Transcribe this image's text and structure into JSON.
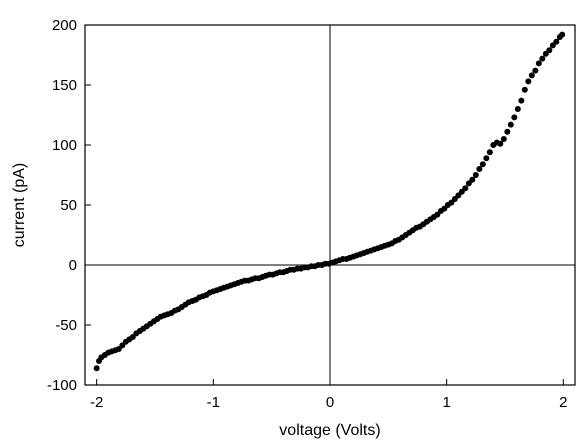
{
  "chart_data": {
    "type": "scatter",
    "title": "",
    "xlabel": "voltage (Volts)",
    "ylabel": "current (pA)",
    "xlim": [
      -2.1,
      2.1
    ],
    "ylim": [
      -100,
      200
    ],
    "xticks": [
      -2,
      -1,
      0,
      1,
      2
    ],
    "yticks": [
      -100,
      -50,
      0,
      50,
      100,
      150,
      200
    ],
    "xtick_labels": [
      "-2",
      "-1",
      "0",
      "1",
      "2"
    ],
    "ytick_labels": [
      "-100",
      "-50",
      "0",
      "50",
      "100",
      "150",
      "200"
    ],
    "reference_lines": {
      "x": 0,
      "y": 0
    },
    "grid": false,
    "marker_color": "#000000",
    "series": [
      {
        "x": [
          -2.0,
          -1.98,
          -1.96,
          -1.93,
          -1.9,
          -1.87,
          -1.84,
          -1.81,
          -1.78,
          -1.75,
          -1.72,
          -1.69,
          -1.66,
          -1.63,
          -1.6,
          -1.57,
          -1.54,
          -1.51,
          -1.48,
          -1.45,
          -1.42,
          -1.39,
          -1.36,
          -1.33,
          -1.3,
          -1.27,
          -1.24,
          -1.21,
          -1.18,
          -1.15,
          -1.12,
          -1.09,
          -1.06,
          -1.03,
          -1.0,
          -0.97,
          -0.94,
          -0.91,
          -0.88,
          -0.85,
          -0.82,
          -0.79,
          -0.76,
          -0.73,
          -0.7,
          -0.67,
          -0.64,
          -0.61,
          -0.58,
          -0.55,
          -0.52,
          -0.49,
          -0.46,
          -0.43,
          -0.4,
          -0.37,
          -0.34,
          -0.31,
          -0.28,
          -0.25,
          -0.22,
          -0.19,
          -0.16,
          -0.13,
          -0.1,
          -0.07,
          -0.04,
          -0.01,
          0.02,
          0.05,
          0.08,
          0.11,
          0.14,
          0.17,
          0.2,
          0.23,
          0.26,
          0.29,
          0.32,
          0.35,
          0.38,
          0.41,
          0.44,
          0.47,
          0.5,
          0.53,
          0.56,
          0.59,
          0.62,
          0.65,
          0.68,
          0.71,
          0.74,
          0.77,
          0.8,
          0.83,
          0.86,
          0.89,
          0.92,
          0.95,
          0.98,
          1.01,
          1.04,
          1.07,
          1.1,
          1.13,
          1.16,
          1.19,
          1.22,
          1.25,
          1.28,
          1.31,
          1.34,
          1.37,
          1.4,
          1.43,
          1.46,
          1.49,
          1.52,
          1.55,
          1.58,
          1.61,
          1.64,
          1.67,
          1.7,
          1.73,
          1.76,
          1.79,
          1.82,
          1.85,
          1.88,
          1.91,
          1.94,
          1.97,
          1.99
        ],
        "y": [
          -86,
          -80,
          -77,
          -75,
          -73,
          -72,
          -71,
          -70,
          -67,
          -64,
          -62,
          -60,
          -57,
          -55,
          -53,
          -51,
          -49,
          -47,
          -45,
          -43,
          -42,
          -41,
          -40,
          -38,
          -37,
          -35,
          -33,
          -31,
          -30,
          -29,
          -27,
          -26,
          -25,
          -23,
          -22,
          -21,
          -20,
          -19,
          -18,
          -17,
          -16,
          -15,
          -14,
          -13,
          -13,
          -12,
          -11,
          -11,
          -10,
          -9,
          -8,
          -8,
          -7,
          -6,
          -6,
          -5,
          -4,
          -4,
          -3,
          -3,
          -2,
          -2,
          -1,
          -1,
          0,
          0,
          1,
          1,
          2,
          3,
          4,
          5,
          5,
          6,
          7,
          8,
          9,
          10,
          11,
          12,
          13,
          14,
          15,
          16,
          17,
          18,
          20,
          21,
          23,
          25,
          27,
          29,
          31,
          32,
          34,
          36,
          38,
          40,
          42,
          45,
          47,
          50,
          52,
          55,
          58,
          61,
          64,
          68,
          71,
          75,
          80,
          84,
          89,
          94,
          100,
          102,
          101,
          105,
          111,
          117,
          123,
          130,
          137,
          146,
          153,
          158,
          162,
          168,
          172,
          176,
          179,
          183,
          186,
          190,
          192
        ]
      }
    ]
  }
}
